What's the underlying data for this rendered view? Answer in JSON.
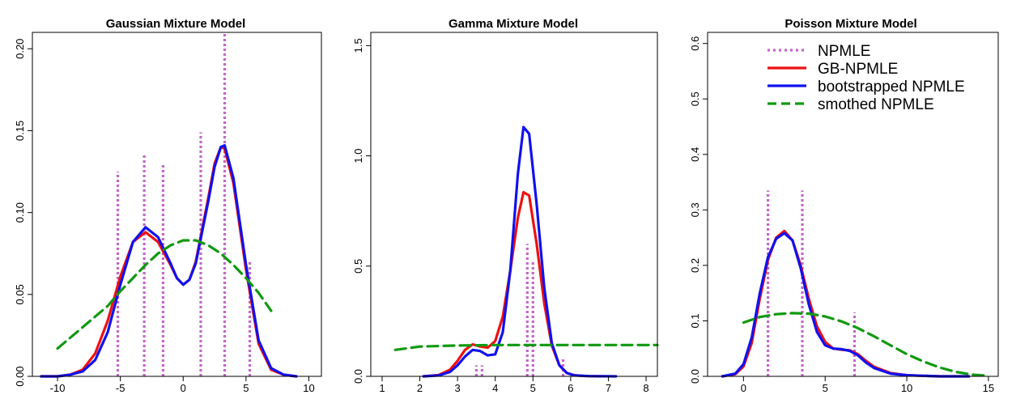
{
  "colors": {
    "npmle": "#c266c8",
    "gb_npmle": "#ee1111",
    "bootstrapped_npmle": "#1111ee",
    "smoothed_npmle": "#119911",
    "zero_line": "#bdbdbd",
    "axis": "#000000"
  },
  "legend": {
    "placement": "top-right of third panel",
    "items": [
      {
        "label": "NPMLE",
        "style": "dotted",
        "color": "#c266c8"
      },
      {
        "label": "GB-NPMLE",
        "style": "solid",
        "color": "#ee1111"
      },
      {
        "label": "bootstrapped NPMLE",
        "style": "solid",
        "color": "#1111ee"
      },
      {
        "label": "smothed NPMLE",
        "style": "dashed",
        "color": "#119911"
      }
    ]
  },
  "chart_data": [
    {
      "type": "line",
      "title": "Gaussian Mixture Model",
      "xlabel": "",
      "ylabel": "",
      "xlim": [
        -12,
        11
      ],
      "ylim": [
        0,
        0.21
      ],
      "xticks": [
        -10,
        -5,
        0,
        5,
        10
      ],
      "yticks": [
        0.0,
        0.05,
        0.1,
        0.15,
        0.2
      ],
      "ytick_labels": [
        "0.00",
        "0.05",
        "0.10",
        "0.15",
        "0.20"
      ],
      "xtick_labels": [
        "-10",
        "-5",
        "0",
        "5",
        "10"
      ],
      "zero_line": true,
      "npmle_spikes": [
        [
          -5.2,
          0.125
        ],
        [
          -3.1,
          0.136
        ],
        [
          -1.6,
          0.13
        ],
        [
          1.4,
          0.149
        ],
        [
          3.3,
          0.21
        ],
        [
          5.3,
          0.07
        ]
      ],
      "series": [
        {
          "name": "GB-NPMLE",
          "x": [
            -11.3,
            -10,
            -9,
            -8,
            -7,
            -6,
            -5,
            -4,
            -3,
            -2,
            -1,
            -0.5,
            0,
            0.5,
            1,
            2,
            2.5,
            3,
            3.3,
            4,
            5,
            6,
            7,
            8,
            9
          ],
          "y": [
            0,
            0,
            0.001,
            0.004,
            0.014,
            0.034,
            0.061,
            0.082,
            0.088,
            0.082,
            0.068,
            0.06,
            0.056,
            0.059,
            0.07,
            0.109,
            0.13,
            0.14,
            0.139,
            0.118,
            0.065,
            0.02,
            0.004,
            0.001,
            0
          ]
        },
        {
          "name": "bootstrapped NPMLE",
          "x": [
            -11.3,
            -10,
            -9,
            -8,
            -7,
            -6,
            -5,
            -4,
            -3,
            -2,
            -1,
            -0.5,
            0,
            0.5,
            1,
            2,
            2.5,
            3,
            3.3,
            4,
            5,
            6,
            7,
            8,
            9
          ],
          "y": [
            0,
            0,
            0.001,
            0.003,
            0.01,
            0.027,
            0.056,
            0.082,
            0.091,
            0.085,
            0.069,
            0.06,
            0.056,
            0.059,
            0.069,
            0.107,
            0.128,
            0.14,
            0.141,
            0.121,
            0.068,
            0.022,
            0.005,
            0.001,
            0
          ]
        },
        {
          "name": "smothed NPMLE",
          "x": [
            -10,
            -8,
            -6,
            -5,
            -4,
            -3,
            -2,
            -1,
            0,
            1,
            2,
            3,
            4,
            5,
            6,
            7
          ],
          "y": [
            0.017,
            0.03,
            0.043,
            0.052,
            0.06,
            0.068,
            0.075,
            0.08,
            0.083,
            0.083,
            0.08,
            0.075,
            0.068,
            0.06,
            0.051,
            0.04
          ]
        }
      ]
    },
    {
      "type": "line",
      "title": "Gamma Mixture Model",
      "xlabel": "",
      "ylabel": "",
      "xlim": [
        0.7,
        8.3
      ],
      "ylim": [
        0,
        1.56
      ],
      "xticks": [
        1,
        2,
        3,
        4,
        5,
        6,
        7,
        8
      ],
      "yticks": [
        0.0,
        0.5,
        1.0,
        1.5
      ],
      "ytick_labels": [
        "0.0",
        "0.5",
        "1.0",
        "1.5"
      ],
      "xtick_labels": [
        "1",
        "2",
        "3",
        "4",
        "5",
        "6",
        "7",
        "8"
      ],
      "zero_line": true,
      "npmle_spikes": [
        [
          3.5,
          0.05
        ],
        [
          3.65,
          0.05
        ],
        [
          4.85,
          0.6
        ],
        [
          5.0,
          0.52
        ],
        [
          5.8,
          0.08
        ]
      ],
      "series": [
        {
          "name": "GB-NPMLE",
          "x": [
            2.1,
            2.5,
            2.8,
            3.0,
            3.2,
            3.4,
            3.6,
            3.8,
            4.0,
            4.2,
            4.4,
            4.6,
            4.75,
            4.9,
            5.1,
            5.3,
            5.5,
            5.7,
            5.9,
            6.1,
            6.4,
            6.8
          ],
          "y": [
            0,
            0.006,
            0.03,
            0.07,
            0.12,
            0.145,
            0.135,
            0.13,
            0.16,
            0.27,
            0.48,
            0.72,
            0.835,
            0.82,
            0.6,
            0.33,
            0.14,
            0.05,
            0.015,
            0.005,
            0.001,
            0
          ]
        },
        {
          "name": "bootstrapped NPMLE",
          "x": [
            2.1,
            2.5,
            2.8,
            3.0,
            3.2,
            3.4,
            3.6,
            3.8,
            4.0,
            4.2,
            4.4,
            4.6,
            4.75,
            4.9,
            5.1,
            5.3,
            5.5,
            5.7,
            5.9,
            6.1,
            6.5,
            7.2
          ],
          "y": [
            0,
            0.004,
            0.02,
            0.05,
            0.09,
            0.12,
            0.115,
            0.095,
            0.1,
            0.2,
            0.48,
            0.92,
            1.13,
            1.1,
            0.78,
            0.4,
            0.15,
            0.05,
            0.015,
            0.004,
            0.001,
            0
          ]
        },
        {
          "name": "smothed NPMLE",
          "x": [
            1.35,
            2,
            3,
            4,
            5,
            6,
            7,
            8.3
          ],
          "y": [
            0.12,
            0.135,
            0.14,
            0.142,
            0.142,
            0.142,
            0.142,
            0.142
          ]
        }
      ]
    },
    {
      "type": "line",
      "title": "Poisson Mixture Model",
      "xlabel": "",
      "ylabel": "",
      "xlim": [
        -2.2,
        15.6
      ],
      "ylim": [
        0,
        0.62
      ],
      "xticks": [
        0,
        5,
        10,
        15
      ],
      "yticks": [
        0.0,
        0.1,
        0.2,
        0.3,
        0.4,
        0.5,
        0.6
      ],
      "ytick_labels": [
        "0.0",
        "0.1",
        "0.2",
        "0.3",
        "0.4",
        "0.5",
        "0.6"
      ],
      "xtick_labels": [
        "0",
        "5",
        "10",
        "15"
      ],
      "zero_line": true,
      "npmle_spikes": [
        [
          1.5,
          0.335
        ],
        [
          3.6,
          0.335
        ],
        [
          6.8,
          0.115
        ]
      ],
      "series": [
        {
          "name": "GB-NPMLE",
          "x": [
            -1.3,
            -0.5,
            0,
            0.5,
            1,
            1.5,
            2,
            2.5,
            3,
            3.5,
            4,
            4.5,
            5,
            5.5,
            6,
            6.5,
            7,
            7.5,
            8,
            9,
            10,
            11,
            12,
            13.8
          ],
          "y": [
            0,
            0.004,
            0.018,
            0.06,
            0.14,
            0.21,
            0.25,
            0.262,
            0.245,
            0.2,
            0.14,
            0.09,
            0.062,
            0.05,
            0.048,
            0.047,
            0.04,
            0.028,
            0.017,
            0.006,
            0.002,
            0.001,
            0,
            0
          ]
        },
        {
          "name": "bootstrapped NPMLE",
          "x": [
            -1.3,
            -0.5,
            0,
            0.5,
            1,
            1.5,
            2,
            2.5,
            3,
            3.5,
            4,
            4.5,
            5,
            5.5,
            6,
            6.5,
            7,
            7.5,
            8,
            9,
            10,
            11,
            12,
            13.8
          ],
          "y": [
            0,
            0.005,
            0.022,
            0.07,
            0.15,
            0.215,
            0.248,
            0.258,
            0.245,
            0.195,
            0.13,
            0.08,
            0.056,
            0.05,
            0.049,
            0.046,
            0.038,
            0.025,
            0.015,
            0.005,
            0.002,
            0.001,
            0,
            0
          ]
        },
        {
          "name": "smothed NPMLE",
          "x": [
            0,
            1,
            2,
            3,
            4,
            5,
            6,
            7,
            8,
            9,
            10,
            11,
            12,
            13,
            14,
            15
          ],
          "y": [
            0.097,
            0.107,
            0.112,
            0.114,
            0.113,
            0.108,
            0.099,
            0.087,
            0.072,
            0.056,
            0.04,
            0.027,
            0.016,
            0.008,
            0.003,
            0.001
          ]
        }
      ]
    }
  ]
}
